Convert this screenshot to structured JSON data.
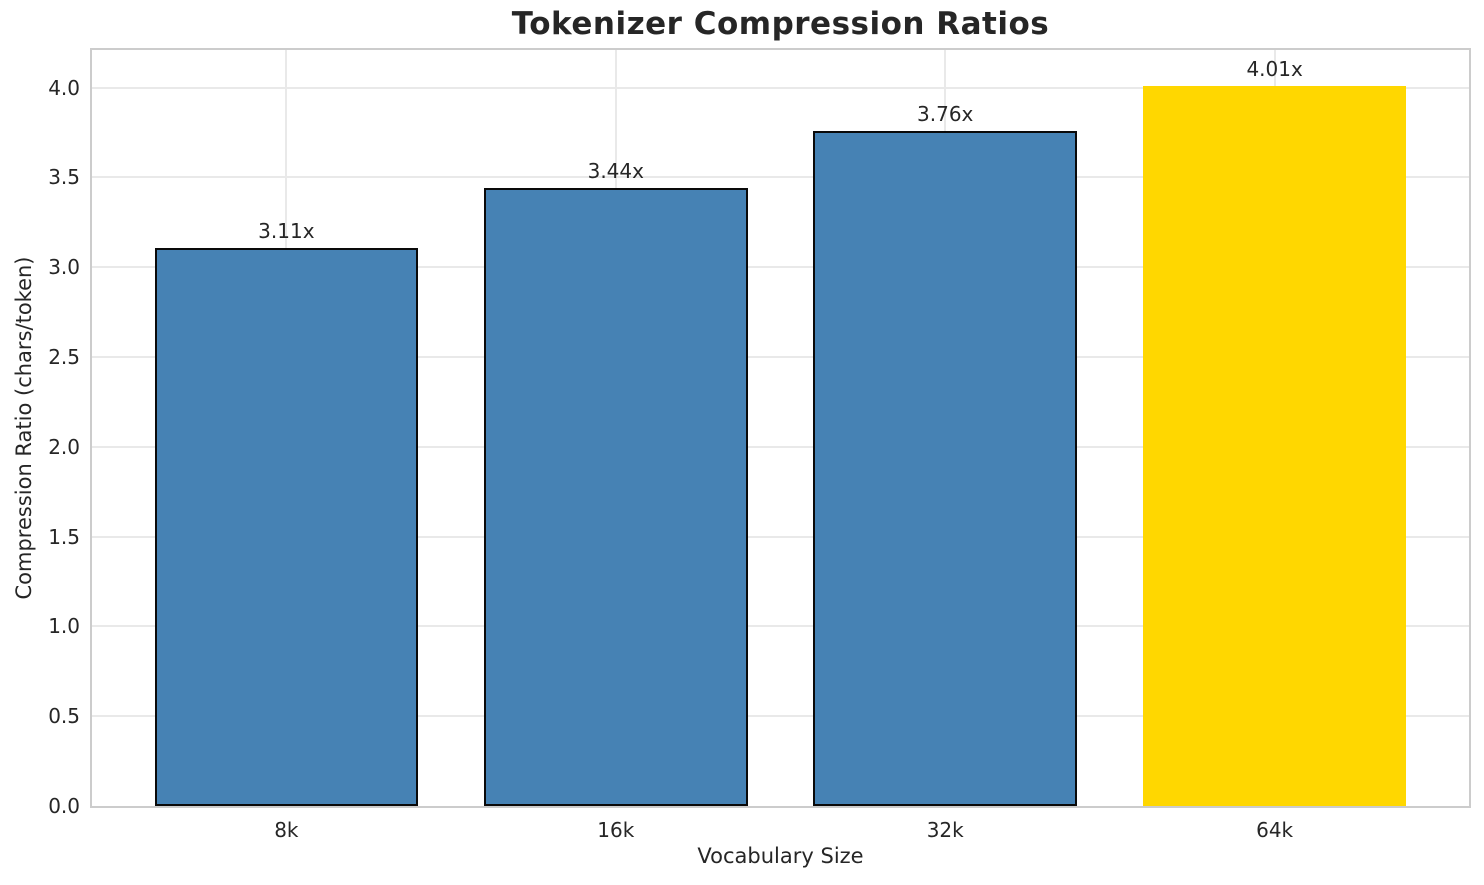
{
  "chart_data": {
    "type": "bar",
    "title": "Tokenizer Compression Ratios",
    "xlabel": "Vocabulary Size",
    "ylabel": "Compression Ratio (chars/token)",
    "categories": [
      "8k",
      "16k",
      "32k",
      "64k"
    ],
    "values": [
      3.11,
      3.44,
      3.76,
      4.01
    ],
    "bar_labels": [
      "3.11x",
      "3.44x",
      "3.76x",
      "4.01x"
    ],
    "yticks": [
      "0.0",
      "0.5",
      "1.0",
      "1.5",
      "2.0",
      "2.5",
      "3.0",
      "3.5",
      "4.0"
    ],
    "ylim": [
      0,
      4.21
    ],
    "xlim": [
      -0.59,
      3.59
    ],
    "bar_width": 0.8,
    "grid": true,
    "legend": "none",
    "colors": {
      "bar_fill": "#4682B4",
      "bar_edge": "#0a0a0a",
      "highlight_fill": "#FFD700",
      "grid": "#e9e9e9",
      "spine": "#cccccc",
      "text": "#262626"
    },
    "highlight_index": 3
  }
}
